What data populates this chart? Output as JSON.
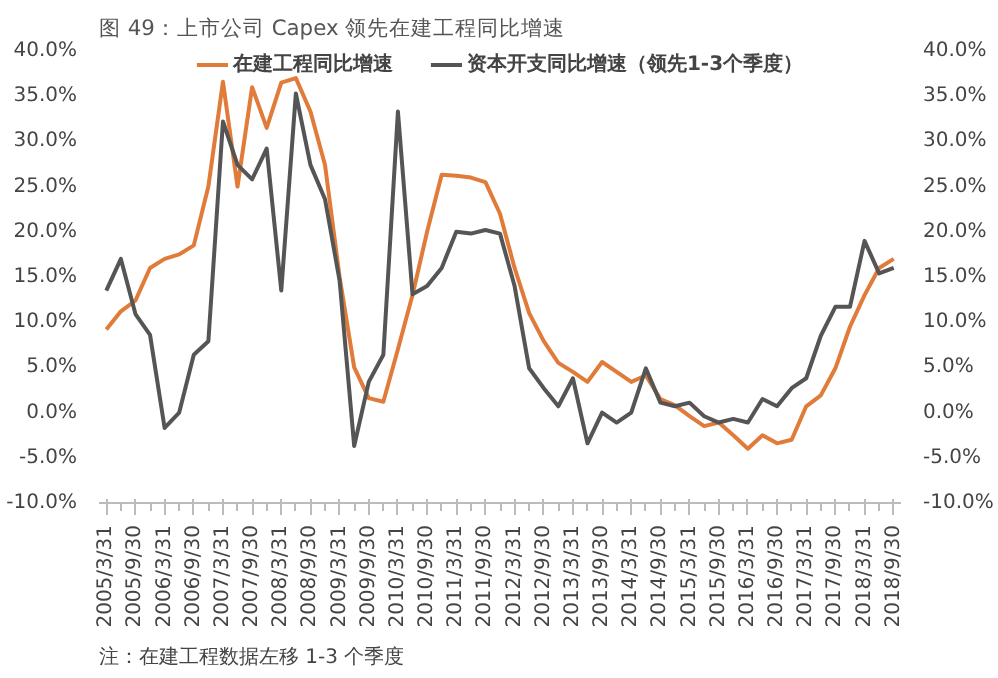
{
  "chart_data": {
    "type": "line",
    "title": "图 49：上市公司 Capex 领先在建工程同比增速",
    "categories": [
      "2005/3/31",
      null,
      "2005/9/30",
      null,
      "2006/3/31",
      null,
      "2006/9/30",
      null,
      "2007/3/31",
      null,
      "2007/9/30",
      null,
      "2008/3/31",
      null,
      "2008/9/30",
      null,
      "2009/3/31",
      null,
      "2009/9/30",
      null,
      "2010/3/31",
      null,
      "2010/9/30",
      null,
      "2011/3/31",
      null,
      "2011/9/30",
      null,
      "2012/3/31",
      null,
      "2012/9/30",
      null,
      "2013/3/31",
      null,
      "2013/9/30",
      null,
      "2014/3/31",
      null,
      "2014/9/30",
      null,
      "2015/3/31",
      null,
      "2015/9/30",
      null,
      "2016/3/31",
      null,
      "2016/9/30",
      null,
      "2017/3/31",
      null,
      "2017/9/30",
      null,
      "2018/3/31",
      null,
      "2018/9/30"
    ],
    "series": [
      {
        "name": "在建工程同比增速",
        "color": "#e07b39",
        "values": [
          9.2,
          11.2,
          12.4,
          16,
          17,
          17.5,
          18.5,
          25,
          36.6,
          25,
          36,
          31.5,
          36.5,
          37,
          33.3,
          27.4,
          15,
          5,
          1.6,
          1.2,
          7,
          13,
          20,
          26.3,
          26.2,
          26,
          25.5,
          22,
          16,
          11,
          7.9,
          5.5,
          4.5,
          3.4,
          5.6,
          4.5,
          3.4,
          4.1,
          1.5,
          0.8,
          -0.4,
          -1.5,
          -1.1,
          -2.5,
          -4,
          -2.5,
          -3.4,
          -3,
          0.7,
          1.9,
          4.9,
          9.5,
          13,
          16,
          17
        ]
      },
      {
        "name": "资本开支同比增速（领先1-3个季度）",
        "color": "#555555",
        "values": [
          13.5,
          17,
          10.9,
          8.6,
          -1.7,
          0,
          6.4,
          7.9,
          32.2,
          27.4,
          25.8,
          29.2,
          13.5,
          35.3,
          27.4,
          23.6,
          14.6,
          -3.7,
          3.4,
          6.4,
          33.3,
          13.1,
          14,
          16,
          20,
          19.8,
          20.2,
          19.8,
          14,
          4.9,
          2.7,
          0.7,
          3.8,
          -3.4,
          0,
          -1.1,
          0,
          4.9,
          1.1,
          0.7,
          1.1,
          -0.4,
          -1.1,
          -0.7,
          -1.1,
          1.5,
          0.7,
          2.7,
          3.8,
          8.5,
          11.7,
          11.7,
          19,
          15.4,
          16
        ]
      }
    ],
    "ylim": [
      -10,
      40
    ],
    "yticks": [
      {
        "value": -10,
        "label": "-10.0%"
      },
      {
        "value": -5,
        "label": "-5.0%"
      },
      {
        "value": 0,
        "label": "0.0%"
      },
      {
        "value": 5,
        "label": "5.0%"
      },
      {
        "value": 10,
        "label": "10.0%"
      },
      {
        "value": 15,
        "label": "15.0%"
      },
      {
        "value": 20,
        "label": "20.0%"
      },
      {
        "value": 25,
        "label": "25.0%"
      },
      {
        "value": 30,
        "label": "30.0%"
      },
      {
        "value": 35,
        "label": "35.0%"
      },
      {
        "value": 40,
        "label": "40.0%"
      }
    ],
    "y2lim": [
      -10,
      40
    ],
    "y2ticks": [
      {
        "value": -10,
        "label": "-10.0%"
      },
      {
        "value": -5,
        "label": "-5.0%"
      },
      {
        "value": 0,
        "label": "0.0%"
      },
      {
        "value": 5,
        "label": "5.0%"
      },
      {
        "value": 10,
        "label": "10.0%"
      },
      {
        "value": 15,
        "label": "15.0%"
      },
      {
        "value": 20,
        "label": "20.0%"
      },
      {
        "value": 25,
        "label": "25.0%"
      },
      {
        "value": 30,
        "label": "30.0%"
      },
      {
        "value": 35,
        "label": "35.0%"
      },
      {
        "value": 40,
        "label": "40.0%"
      }
    ],
    "grid": false,
    "legend": "top",
    "marker": "none",
    "line_style": "solid",
    "annotations": [
      "注：在建工程数据左移 1-3 个季度"
    ]
  }
}
